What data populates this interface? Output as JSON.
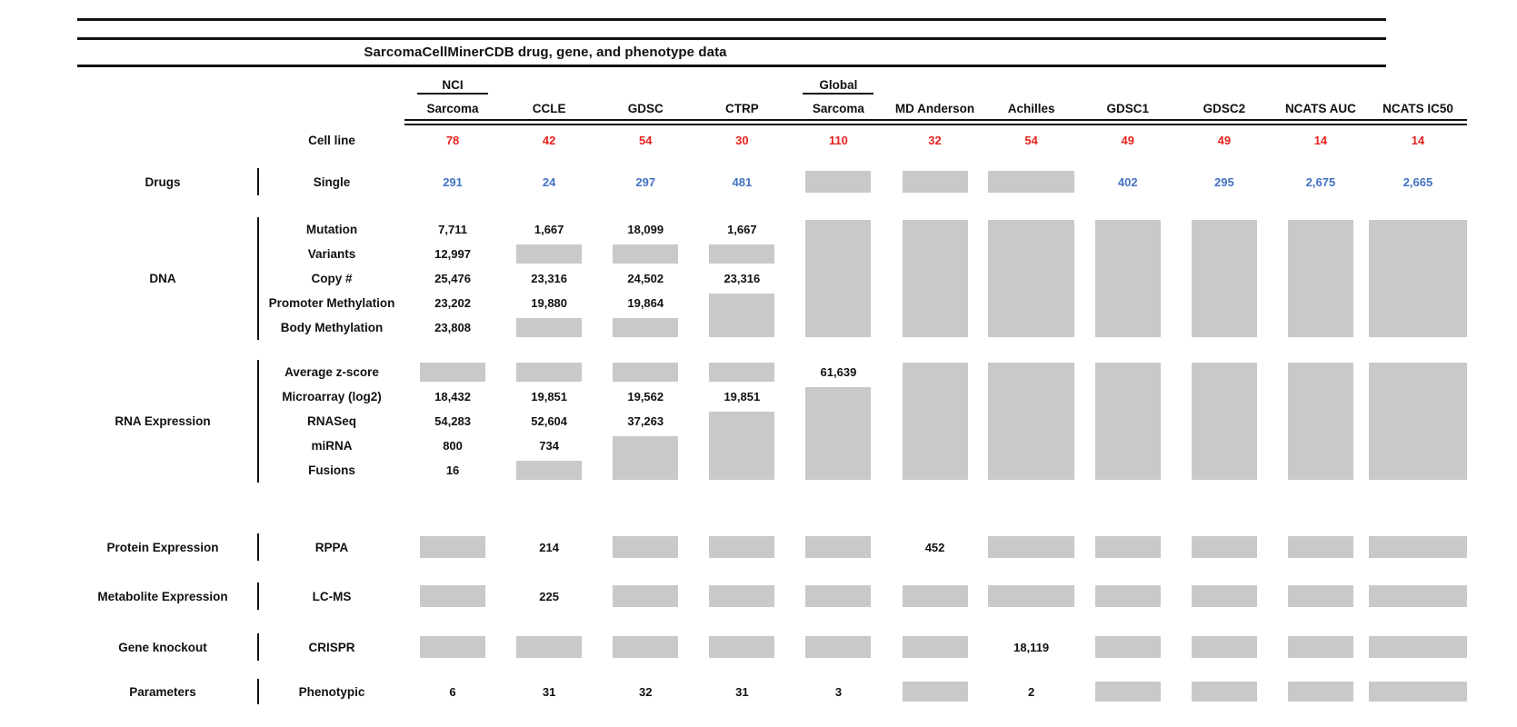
{
  "title": "SarcomaCellMinerCDB drug, gene, and phenotype data",
  "colors": {
    "cell_line_red": "#e8221c",
    "drug_blue": "#4472c4",
    "missing_gray": "#c9c9c9",
    "line_black": "#111111"
  },
  "columns": [
    {
      "top": "NCI",
      "label": "Sarcoma"
    },
    {
      "top": "",
      "label": "CCLE"
    },
    {
      "top": "",
      "label": "GDSC"
    },
    {
      "top": "",
      "label": "CTRP"
    },
    {
      "top": "Global",
      "label": "Sarcoma"
    },
    {
      "top": "",
      "label": "MD Anderson"
    },
    {
      "top": "",
      "label": "Achilles"
    },
    {
      "top": "",
      "label": "GDSC1"
    },
    {
      "top": "",
      "label": "GDSC2"
    },
    {
      "top": "",
      "label": "NCATS AUC"
    },
    {
      "top": "",
      "label": "NCATS IC50"
    }
  ],
  "cell_line_row": {
    "label": "Cell line",
    "values": [
      "78",
      "42",
      "54",
      "30",
      "110",
      "32",
      "54",
      "49",
      "49",
      "14",
      "14"
    ]
  },
  "sections": [
    {
      "category": "Drugs",
      "value_color": "blue",
      "rows": [
        {
          "label": "Single",
          "cells": [
            "291",
            "24",
            "297",
            "481",
            {
              "b": 1
            },
            {
              "b": 1
            },
            {
              "b": 1
            },
            "402",
            "295",
            "2,675",
            "2,665"
          ]
        }
      ]
    },
    {
      "category": "DNA",
      "value_color": "",
      "rows": [
        {
          "label": "Mutation",
          "cells": [
            "7,711",
            "1,667",
            "18,099",
            "1,667",
            {
              "b": 5
            },
            {
              "b": 5
            },
            {
              "b": 5
            },
            {
              "b": 5
            },
            {
              "b": 5
            },
            {
              "b": 5
            },
            {
              "b": 5
            }
          ]
        },
        {
          "label": "Variants",
          "cells": [
            "12,997",
            {
              "b": 1
            },
            {
              "b": 1
            },
            {
              "b": 1
            },
            null,
            null,
            null,
            null,
            null,
            null,
            null
          ]
        },
        {
          "label": "Copy #",
          "cells": [
            "25,476",
            "23,316",
            "24,502",
            "23,316",
            null,
            null,
            null,
            null,
            null,
            null,
            null
          ]
        },
        {
          "label": "Promoter Methylation",
          "cells": [
            "23,202",
            "19,880",
            "19,864",
            {
              "b": 2
            },
            null,
            null,
            null,
            null,
            null,
            null,
            null
          ]
        },
        {
          "label": "Body Methylation",
          "cells": [
            "23,808",
            {
              "b": 1
            },
            {
              "b": 1
            },
            null,
            null,
            null,
            null,
            null,
            null,
            null,
            null
          ]
        }
      ]
    },
    {
      "category": "RNA Expression",
      "value_color": "",
      "rows": [
        {
          "label": "Average z-score",
          "cells": [
            {
              "b": 1
            },
            {
              "b": 1
            },
            {
              "b": 1
            },
            {
              "b": 1
            },
            "61,639",
            {
              "b": 5
            },
            {
              "b": 5
            },
            {
              "b": 5
            },
            {
              "b": 5
            },
            {
              "b": 5
            },
            {
              "b": 5
            }
          ]
        },
        {
          "label": "Microarray (log2)",
          "cells": [
            "18,432",
            "19,851",
            "19,562",
            "19,851",
            {
              "b": 4
            },
            null,
            null,
            null,
            null,
            null,
            null
          ]
        },
        {
          "label": "RNASeq",
          "cells": [
            "54,283",
            "52,604",
            "37,263",
            {
              "b": 3
            },
            null,
            null,
            null,
            null,
            null,
            null,
            null
          ]
        },
        {
          "label": "miRNA",
          "cells": [
            "800",
            "734",
            {
              "b": 2
            },
            null,
            null,
            null,
            null,
            null,
            null,
            null,
            null
          ]
        },
        {
          "label": "Fusions",
          "cells": [
            "16",
            {
              "b": 1
            },
            null,
            null,
            null,
            null,
            null,
            null,
            null,
            null,
            null
          ]
        }
      ]
    },
    {
      "category": "Protein Expression",
      "value_color": "",
      "rows": [
        {
          "label": "RPPA",
          "cells": [
            {
              "b": 1
            },
            "214",
            {
              "b": 1
            },
            {
              "b": 1
            },
            {
              "b": 1
            },
            "452",
            {
              "b": 1
            },
            {
              "b": 1
            },
            {
              "b": 1
            },
            {
              "b": 1
            },
            {
              "b": 1
            }
          ]
        }
      ]
    },
    {
      "category": "Metabolite Expression",
      "value_color": "",
      "rows": [
        {
          "label": "LC-MS",
          "cells": [
            {
              "b": 1
            },
            "225",
            {
              "b": 1
            },
            {
              "b": 1
            },
            {
              "b": 1
            },
            {
              "b": 1
            },
            {
              "b": 1
            },
            {
              "b": 1
            },
            {
              "b": 1
            },
            {
              "b": 1
            },
            {
              "b": 1
            }
          ]
        }
      ]
    },
    {
      "category": "Gene knockout",
      "value_color": "",
      "rows": [
        {
          "label": "CRISPR",
          "cells": [
            {
              "b": 1
            },
            {
              "b": 1
            },
            {
              "b": 1
            },
            {
              "b": 1
            },
            {
              "b": 1
            },
            {
              "b": 1
            },
            "18,119",
            {
              "b": 1
            },
            {
              "b": 1
            },
            {
              "b": 1
            },
            {
              "b": 1
            }
          ]
        }
      ]
    },
    {
      "category": "Parameters",
      "value_color": "",
      "rows": [
        {
          "label": "Phenotypic",
          "cells": [
            "6",
            "31",
            "32",
            "31",
            "3",
            {
              "b": 1
            },
            "2",
            {
              "b": 1
            },
            {
              "b": 1
            },
            {
              "b": 1
            },
            {
              "b": 1
            }
          ]
        }
      ]
    }
  ],
  "chart_data": {
    "type": "table",
    "title": "SarcomaCellMinerCDB drug, gene, and phenotype data",
    "columns": [
      "NCI Sarcoma",
      "CCLE",
      "GDSC",
      "CTRP",
      "Global Sarcoma",
      "MD Anderson",
      "Achilles",
      "GDSC1",
      "GDSC2",
      "NCATS AUC",
      "NCATS IC50"
    ],
    "missing_value_marker": "gray box",
    "rows": [
      {
        "group": "",
        "feature": "Cell line",
        "values": [
          78,
          42,
          54,
          30,
          110,
          32,
          54,
          49,
          49,
          14,
          14
        ]
      },
      {
        "group": "Drugs",
        "feature": "Single",
        "values": [
          291,
          24,
          297,
          481,
          null,
          null,
          null,
          402,
          295,
          2675,
          2665
        ]
      },
      {
        "group": "DNA",
        "feature": "Mutation",
        "values": [
          7711,
          1667,
          18099,
          1667,
          null,
          null,
          null,
          null,
          null,
          null,
          null
        ]
      },
      {
        "group": "DNA",
        "feature": "Variants",
        "values": [
          12997,
          null,
          null,
          null,
          null,
          null,
          null,
          null,
          null,
          null,
          null
        ]
      },
      {
        "group": "DNA",
        "feature": "Copy #",
        "values": [
          25476,
          23316,
          24502,
          23316,
          null,
          null,
          null,
          null,
          null,
          null,
          null
        ]
      },
      {
        "group": "DNA",
        "feature": "Promoter Methylation",
        "values": [
          23202,
          19880,
          19864,
          null,
          null,
          null,
          null,
          null,
          null,
          null,
          null
        ]
      },
      {
        "group": "DNA",
        "feature": "Body Methylation",
        "values": [
          23808,
          null,
          null,
          null,
          null,
          null,
          null,
          null,
          null,
          null,
          null
        ]
      },
      {
        "group": "RNA Expression",
        "feature": "Average z-score",
        "values": [
          null,
          null,
          null,
          null,
          61639,
          null,
          null,
          null,
          null,
          null,
          null
        ]
      },
      {
        "group": "RNA Expression",
        "feature": "Microarray (log2)",
        "values": [
          18432,
          19851,
          19562,
          19851,
          null,
          null,
          null,
          null,
          null,
          null,
          null
        ]
      },
      {
        "group": "RNA Expression",
        "feature": "RNASeq",
        "values": [
          54283,
          52604,
          37263,
          null,
          null,
          null,
          null,
          null,
          null,
          null,
          null
        ]
      },
      {
        "group": "RNA Expression",
        "feature": "miRNA",
        "values": [
          800,
          734,
          null,
          null,
          null,
          null,
          null,
          null,
          null,
          null,
          null
        ]
      },
      {
        "group": "RNA Expression",
        "feature": "Fusions",
        "values": [
          16,
          null,
          null,
          null,
          null,
          null,
          null,
          null,
          null,
          null,
          null
        ]
      },
      {
        "group": "Protein Expression",
        "feature": "RPPA",
        "values": [
          null,
          214,
          null,
          null,
          null,
          452,
          null,
          null,
          null,
          null,
          null
        ]
      },
      {
        "group": "Metabolite Expression",
        "feature": "LC-MS",
        "values": [
          null,
          225,
          null,
          null,
          null,
          null,
          null,
          null,
          null,
          null,
          null
        ]
      },
      {
        "group": "Gene knockout",
        "feature": "CRISPR",
        "values": [
          null,
          null,
          null,
          null,
          null,
          null,
          18119,
          null,
          null,
          null,
          null
        ]
      },
      {
        "group": "Parameters",
        "feature": "Phenotypic",
        "values": [
          6,
          31,
          32,
          31,
          3,
          null,
          2,
          null,
          null,
          null,
          null
        ]
      }
    ]
  }
}
